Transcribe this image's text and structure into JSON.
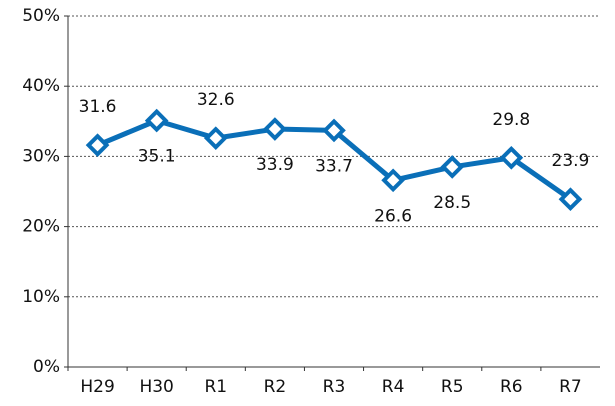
{
  "chart_data": {
    "type": "line",
    "categories": [
      "H29",
      "H30",
      "R1",
      "R2",
      "R3",
      "R4",
      "R5",
      "R6",
      "R7"
    ],
    "values": [
      31.6,
      35.1,
      32.6,
      33.9,
      33.7,
      26.6,
      28.5,
      29.8,
      23.9
    ],
    "color": "#0a6fb8",
    "ylim": [
      0,
      50
    ],
    "yticks": [
      {
        "value": 0,
        "label": "0%"
      },
      {
        "value": 10,
        "label": "10%"
      },
      {
        "value": 20,
        "label": "20%"
      },
      {
        "value": 30,
        "label": "30%"
      },
      {
        "value": 40,
        "label": "40%"
      },
      {
        "value": 50,
        "label": "50%"
      }
    ],
    "grid": true
  }
}
